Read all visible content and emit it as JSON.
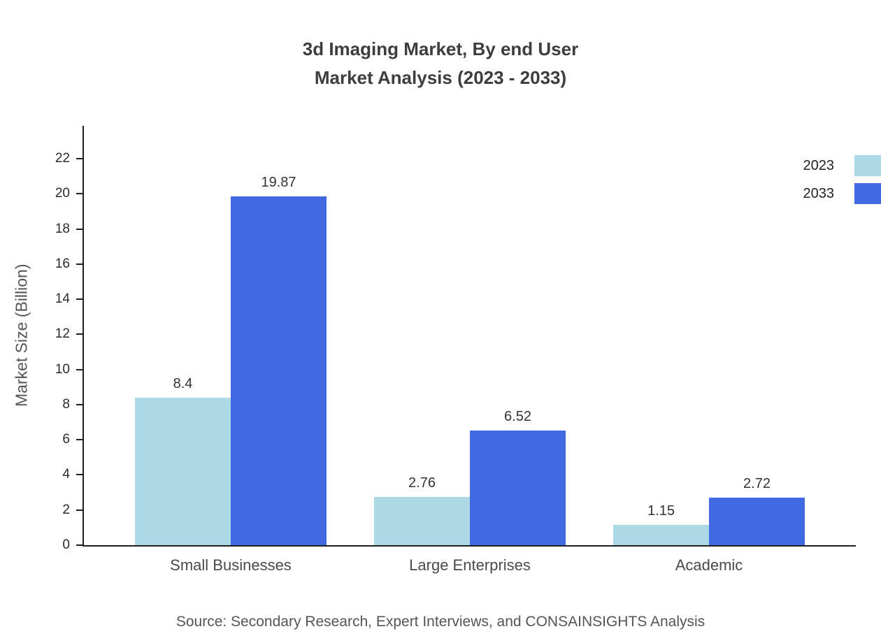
{
  "chart_data": {
    "type": "bar",
    "title": "3d Imaging Market, By end User",
    "subtitle": "Market Analysis (2023 - 2033)",
    "ylabel": "Market Size (Billion)",
    "categories": [
      "Small Businesses",
      "Large Enterprises",
      "Academic"
    ],
    "series": [
      {
        "name": "2023",
        "color": "#ADD8E6",
        "values": [
          8.4,
          2.76,
          1.15
        ]
      },
      {
        "name": "2033",
        "color": "#4169E1",
        "values": [
          19.87,
          6.52,
          2.72
        ]
      }
    ],
    "ylim": [
      0,
      23.8
    ],
    "yticks": [
      0,
      2,
      4,
      6,
      8,
      10,
      12,
      14,
      16,
      18,
      20,
      22
    ],
    "grid": false,
    "legend_position": "top-right"
  },
  "source": "Source: Secondary Research, Expert Interviews, and CONSAINSIGHTS Analysis"
}
